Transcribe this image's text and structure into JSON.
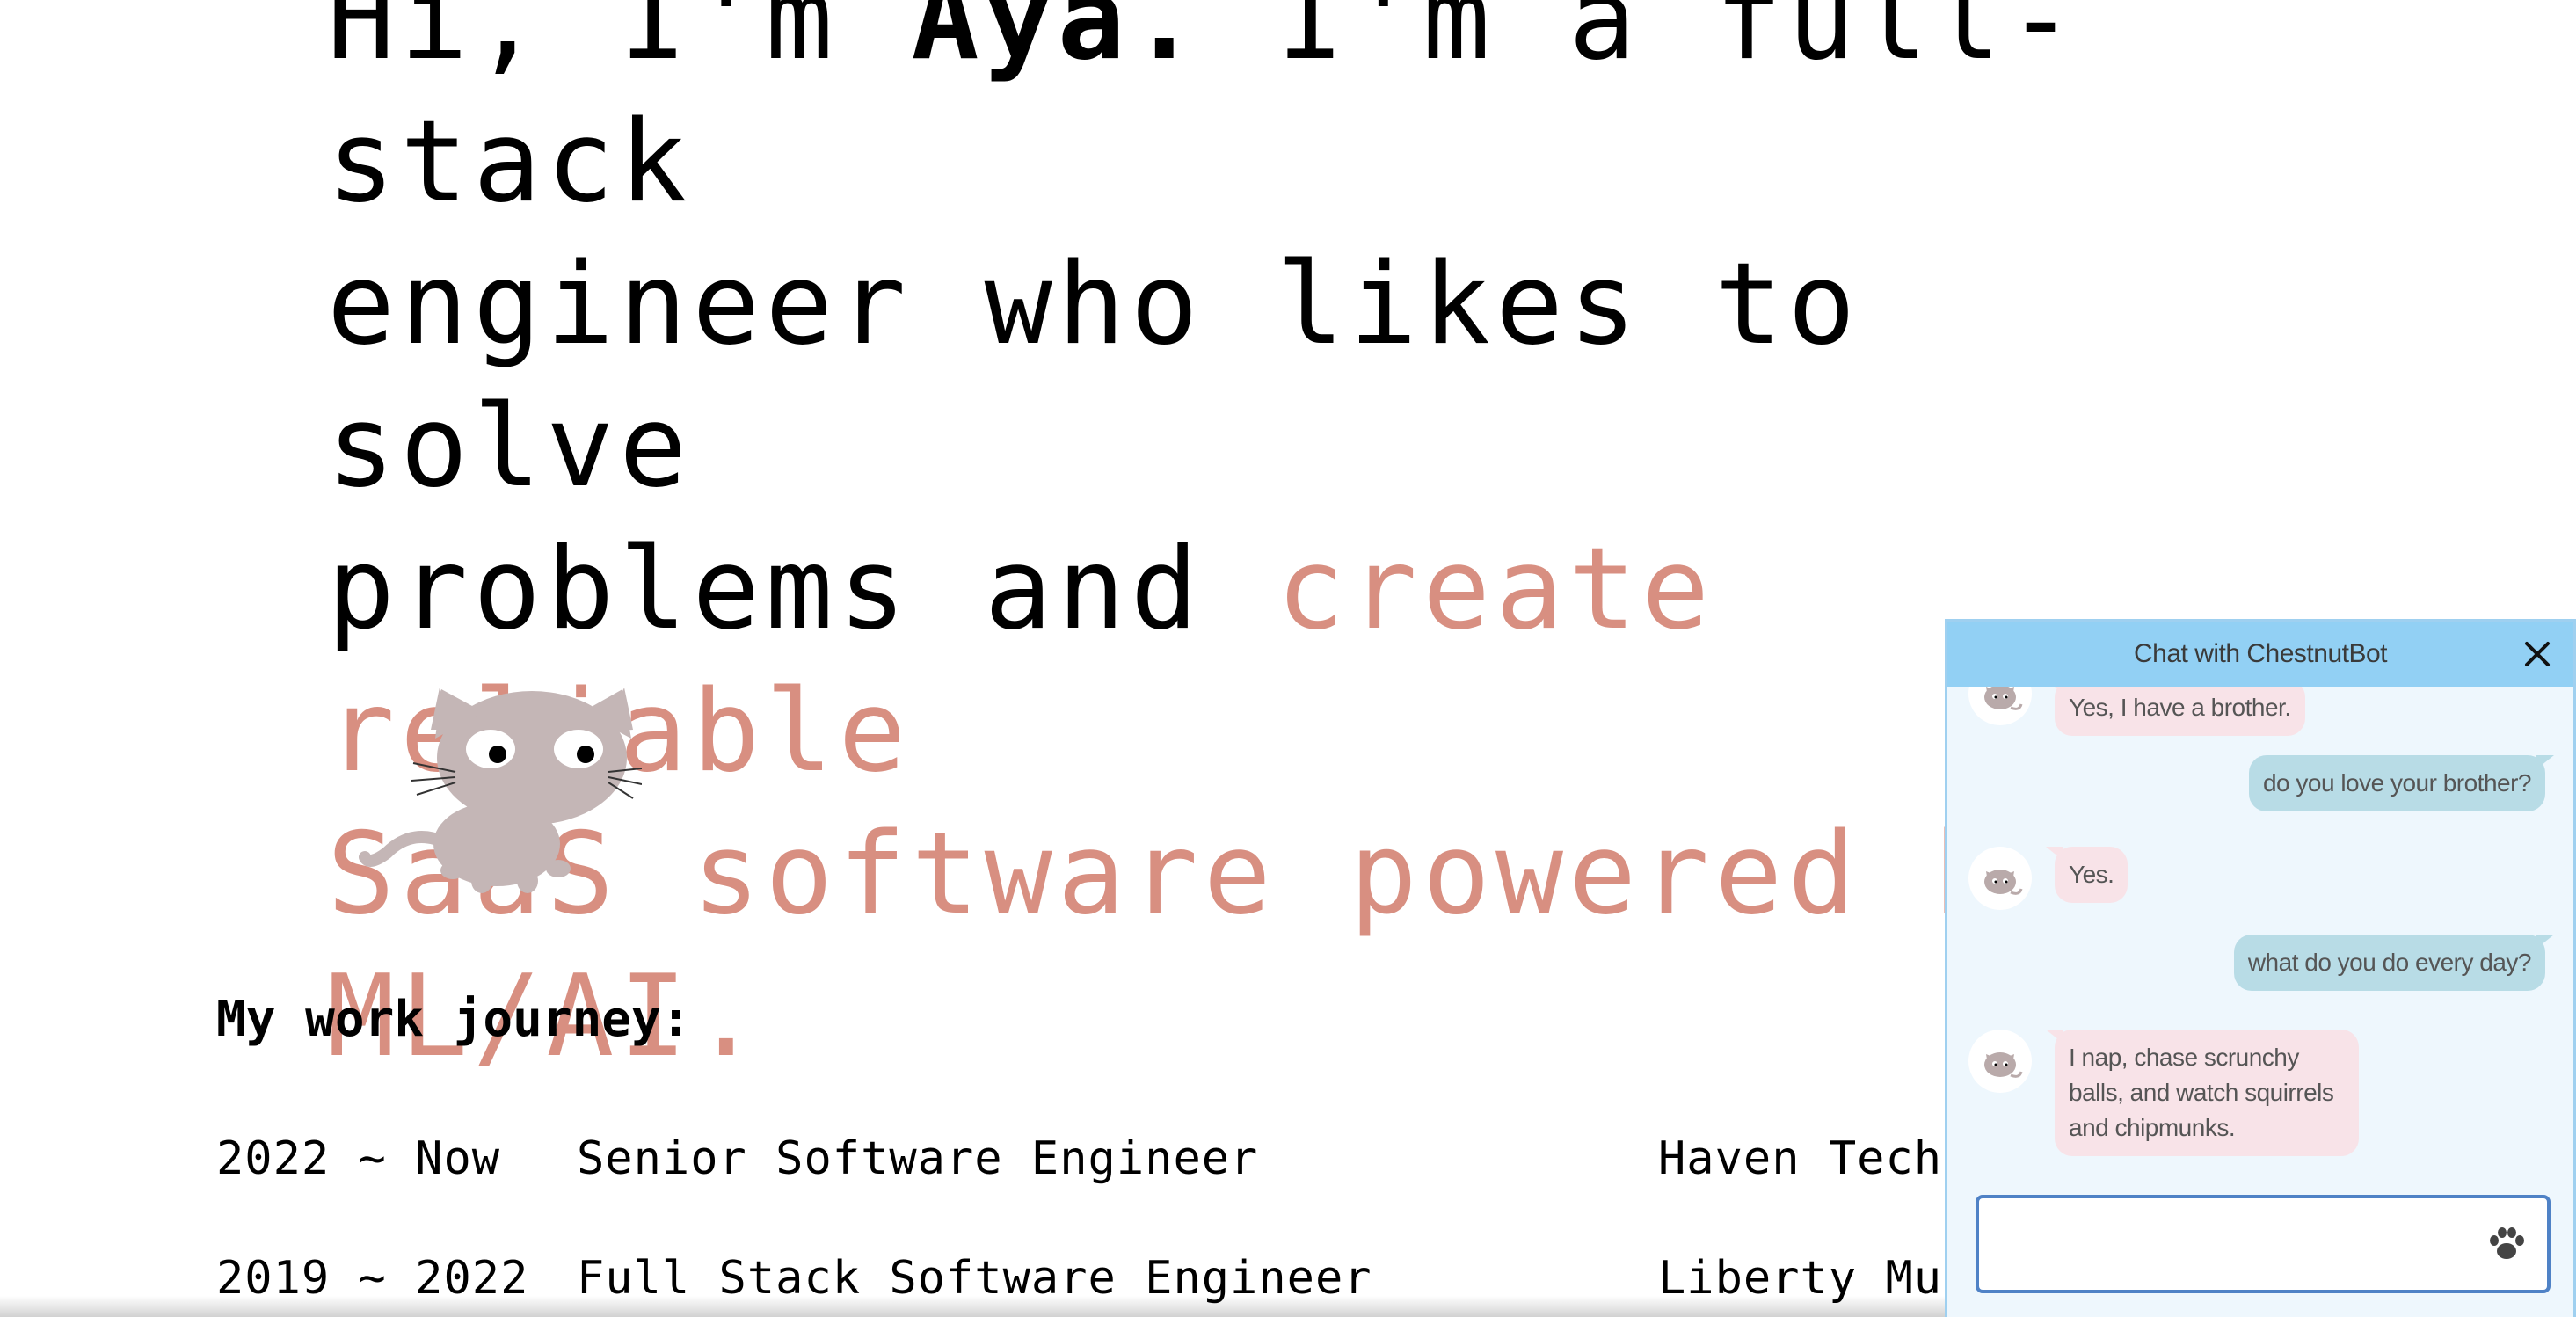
{
  "hero": {
    "line1_pre": "Hi, I'm ",
    "name": "Aya.",
    "line1_post": " I'm a full-stack",
    "line2": "engineer who likes to solve",
    "line3_pre": "problems and ",
    "accent_1": "create reliable",
    "accent_2": "SaaS software powered by",
    "accent_3": "ML/AI."
  },
  "cat_icon": "chestnut-cat-icon",
  "journey": {
    "title": "My work journey:",
    "rows": [
      {
        "years": "2022 ~ Now",
        "role": "Senior Software Engineer",
        "company": "Haven Techn"
      },
      {
        "years": "2019 ~ 2022",
        "role": "Full Stack Software Engineer",
        "company": "Liberty Mut"
      }
    ]
  },
  "chat": {
    "title": "Chat with ChestnutBot",
    "close_icon": "close-icon",
    "messages": [
      {
        "from": "bot",
        "text": "Yes, I have a brother."
      },
      {
        "from": "user",
        "text": "do you love your brother?"
      },
      {
        "from": "bot",
        "text": "Yes."
      },
      {
        "from": "user",
        "text": "what do you do every day?"
      },
      {
        "from": "bot",
        "text": "I nap, chase scrunchy balls, and watch squirrels and chipmunks."
      }
    ],
    "input": {
      "value": "",
      "placeholder": ""
    },
    "send_icon": "paw-icon"
  },
  "colors": {
    "accent": "#d88f81",
    "chat_header": "#92d0f4",
    "chat_bg": "#eef7fd",
    "bot_bubble": "#f8e3e8",
    "user_bubble": "#b8dce6",
    "input_border": "#4f82c6"
  }
}
